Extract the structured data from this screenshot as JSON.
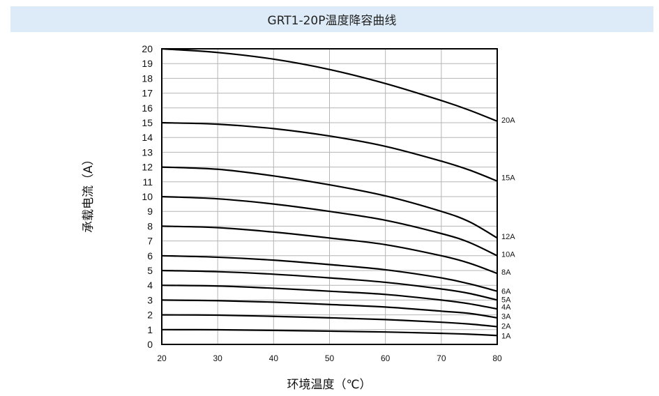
{
  "chart_data": {
    "type": "line",
    "title": "GRT1-20P温度降容曲线",
    "xlabel": "环境温度（℃）",
    "ylabel": "承载电流（A）",
    "xlim": [
      20,
      80
    ],
    "ylim": [
      0,
      20
    ],
    "xticks": [
      "20",
      "30",
      "40",
      "50",
      "60",
      "70",
      "80"
    ],
    "yticks": [
      "0",
      "1",
      "2",
      "3",
      "4",
      "5",
      "6",
      "7",
      "8",
      "9",
      "10",
      "11",
      "12",
      "13",
      "14",
      "15",
      "16",
      "17",
      "18",
      "19",
      "20"
    ],
    "grid": true,
    "x": [
      20,
      30,
      40,
      50,
      60,
      70,
      75,
      80
    ],
    "series": [
      {
        "name": "20A",
        "values": [
          20,
          19.75,
          19.3,
          18.6,
          17.65,
          16.5,
          15.85,
          15.1
        ],
        "label_y": 15.2
      },
      {
        "name": "15A",
        "values": [
          15,
          14.9,
          14.6,
          14.1,
          13.4,
          12.4,
          11.8,
          11.05
        ],
        "label_y": 11.3
      },
      {
        "name": "12A",
        "values": [
          12,
          11.85,
          11.4,
          10.8,
          10.05,
          9.0,
          8.3,
          7.2
        ],
        "label_y": 7.3
      },
      {
        "name": "10A",
        "values": [
          10,
          9.85,
          9.5,
          9.0,
          8.4,
          7.5,
          6.9,
          6.0
        ],
        "label_y": 6.1
      },
      {
        "name": "8A",
        "values": [
          8,
          7.9,
          7.6,
          7.2,
          6.75,
          6.0,
          5.5,
          4.8
        ],
        "label_y": 4.9
      },
      {
        "name": "6A",
        "values": [
          6,
          5.9,
          5.7,
          5.4,
          5.05,
          4.5,
          4.1,
          3.6
        ],
        "label_y": 3.6
      },
      {
        "name": "5A",
        "values": [
          5,
          4.92,
          4.75,
          4.5,
          4.2,
          3.75,
          3.45,
          3.0
        ],
        "label_y": 3.05
      },
      {
        "name": "4A",
        "values": [
          4,
          3.95,
          3.8,
          3.6,
          3.38,
          3.0,
          2.75,
          2.4
        ],
        "label_y": 2.55
      },
      {
        "name": "3A",
        "values": [
          3,
          2.96,
          2.86,
          2.7,
          2.53,
          2.25,
          2.1,
          1.8
        ],
        "label_y": 1.9
      },
      {
        "name": "2A",
        "values": [
          2,
          1.98,
          1.9,
          1.8,
          1.68,
          1.5,
          1.38,
          1.2
        ],
        "label_y": 1.25
      },
      {
        "name": "1A",
        "values": [
          1,
          0.99,
          0.95,
          0.9,
          0.84,
          0.75,
          0.69,
          0.6
        ],
        "label_y": 0.6
      }
    ]
  }
}
